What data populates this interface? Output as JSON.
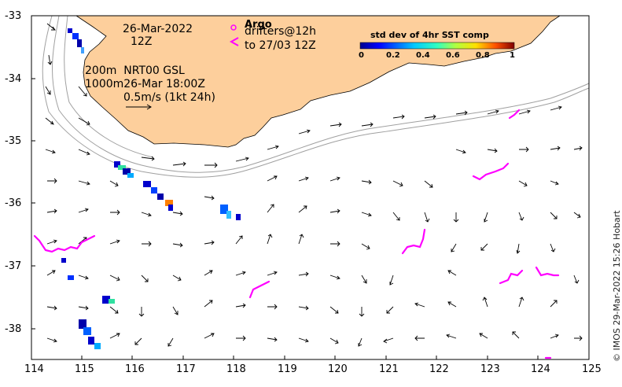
{
  "date": {
    "line1": "26-Mar-2022",
    "line2": "12Z"
  },
  "argo": {
    "title": "Argo",
    "drifters_line": "drifters@12h",
    "to_line": "to 27/03 12Z"
  },
  "model": {
    "line1": "200m  NRT00 GSL",
    "line2": "1000m26-Mar 18:00Z",
    "line3": "0.5m/s (1kt 24h)"
  },
  "colorbar": {
    "title": "std dev of 4hr SST comp",
    "ticks": [
      "0",
      "0.2",
      "0.4",
      "0.6",
      "0.8",
      "1"
    ]
  },
  "axes": {
    "lon_ticks": [
      "114",
      "115",
      "116",
      "117",
      "118",
      "119",
      "120",
      "121",
      "122",
      "123",
      "124",
      "125"
    ],
    "lat_ticks": [
      "-33",
      "-34",
      "-35",
      "-36",
      "-37",
      "-38"
    ]
  },
  "credit": "© IMOS 29-Mar-2022 15:26 Hobart",
  "colors": {
    "land": "#fdcf9c",
    "drifters": "#ff00ff",
    "arrows": "#000000"
  }
}
